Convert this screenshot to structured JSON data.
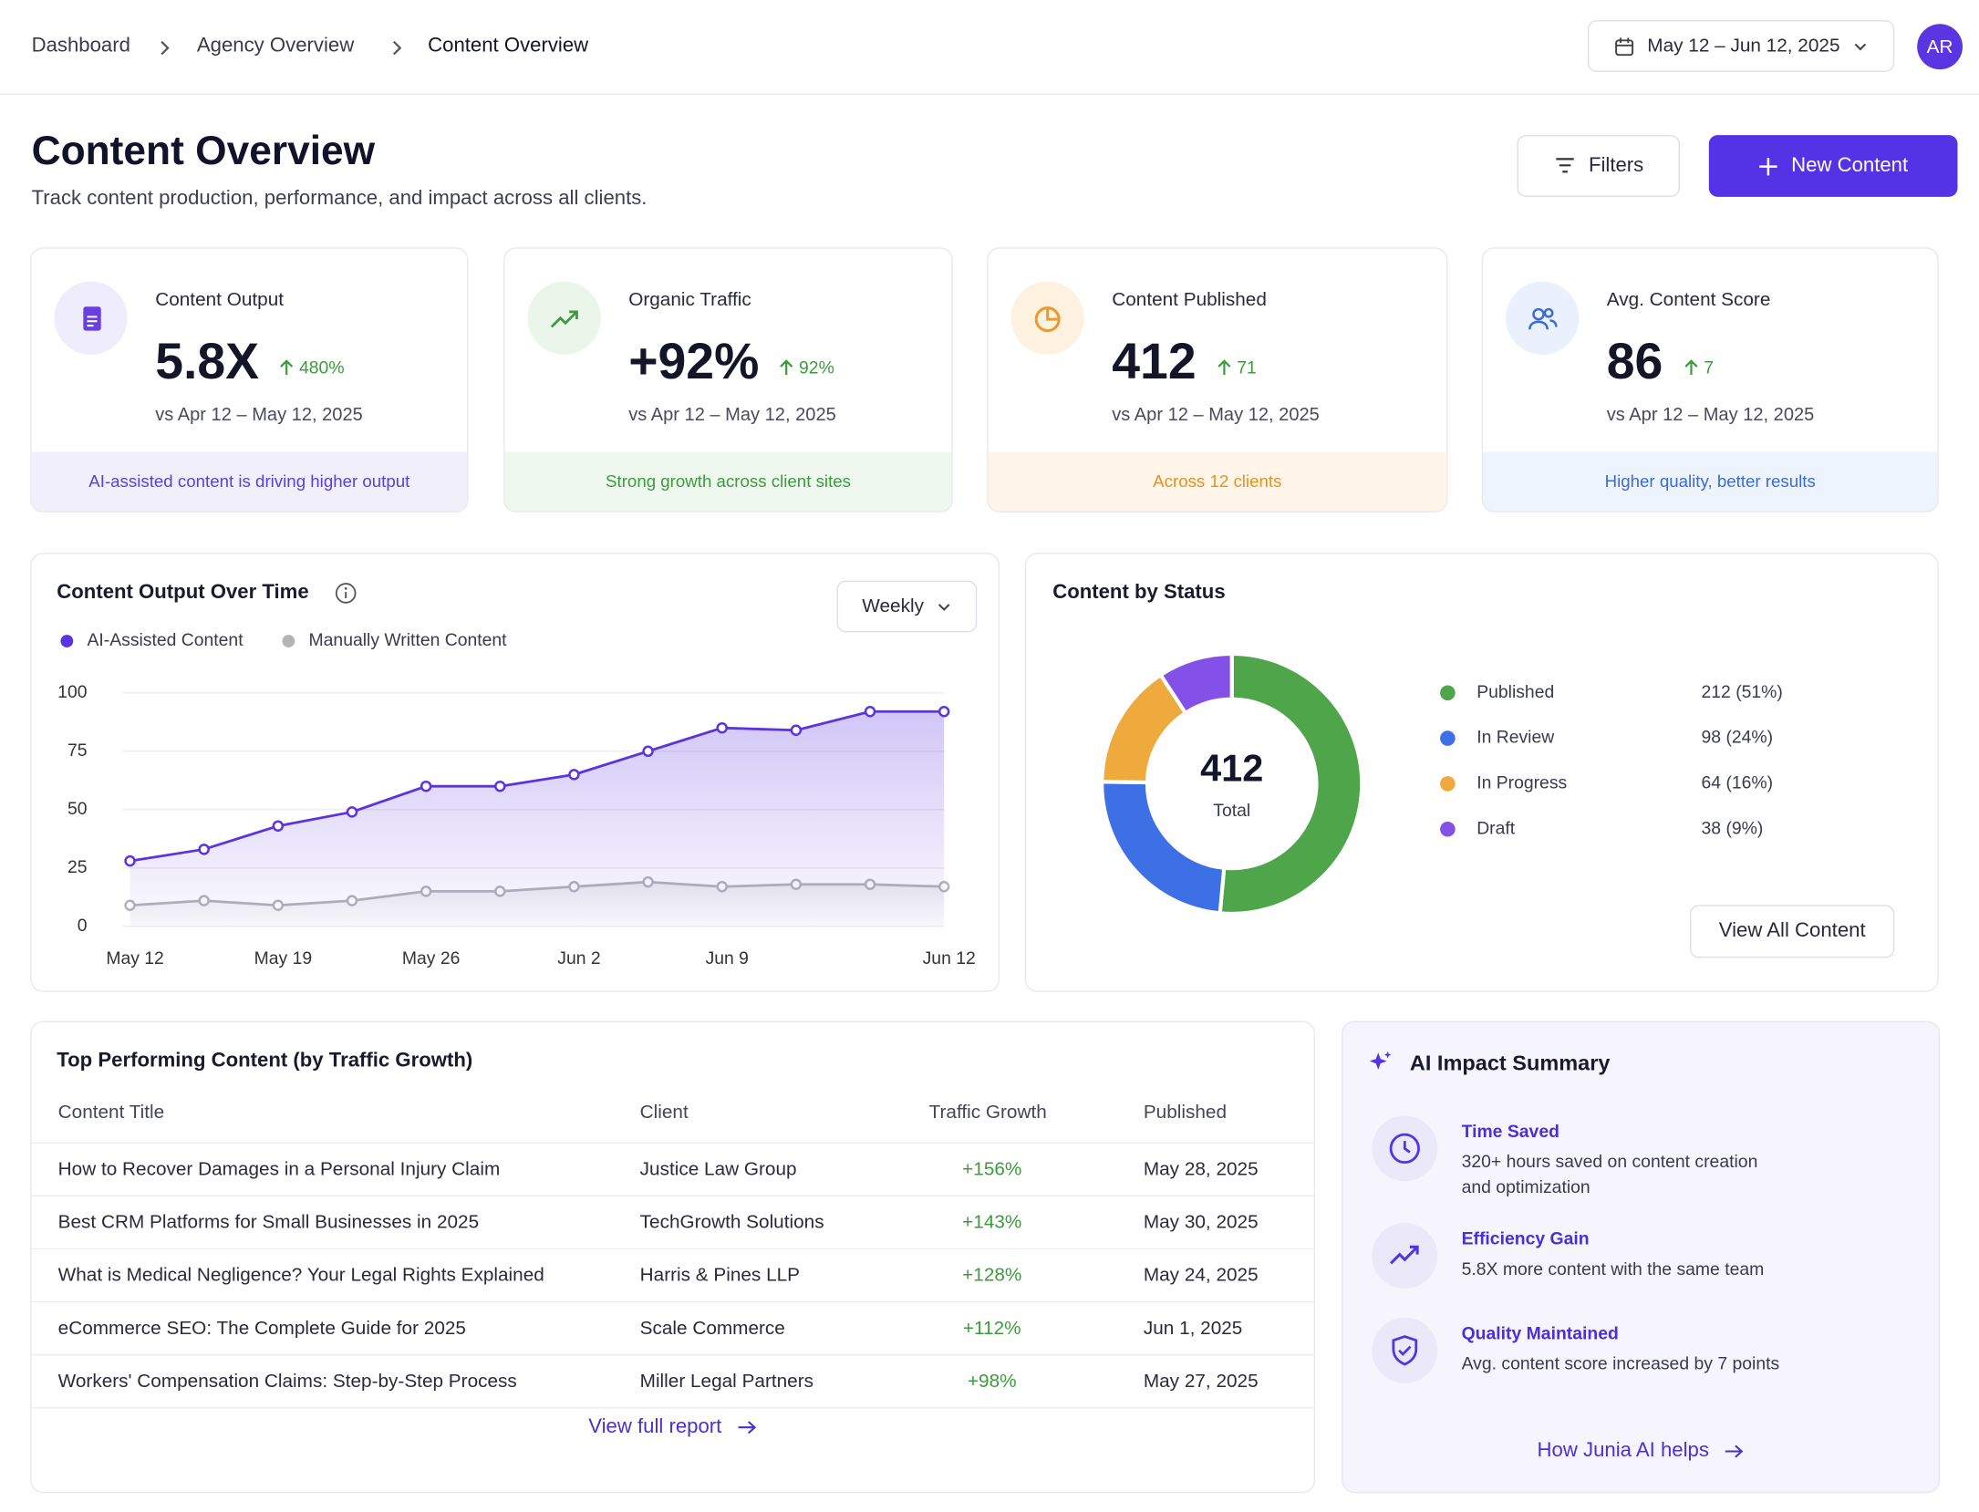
{
  "breadcrumb": [
    "Dashboard",
    "Agency Overview",
    "Content Overview"
  ],
  "date_range": "May 12 – Jun 12, 2025",
  "avatar": "AR",
  "page": {
    "title": "Content Overview",
    "subtitle": "Track content production, performance, and impact across all clients.",
    "filters": "Filters",
    "new_button": "New Content"
  },
  "kpis": [
    {
      "label": "Content Output",
      "value": "5.8X",
      "change": "480%",
      "compare": "vs Apr 12 – May 12, 2025",
      "note": "AI-assisted content is driving higher output"
    },
    {
      "label": "Organic Traffic",
      "value": "+92%",
      "change": "92%",
      "compare": "vs Apr 12 – May 12, 2025",
      "note": "Strong growth across client sites"
    },
    {
      "label": "Content Published",
      "value": "412",
      "change": "71",
      "compare": "vs Apr 12 – May 12, 2025",
      "note": "Across 12 clients"
    },
    {
      "label": "Avg. Content Score",
      "value": "86",
      "change": "7",
      "compare": "vs Apr 12 – May 12, 2025",
      "note": "Higher quality, better results"
    }
  ],
  "chart_data": [
    {
      "type": "line",
      "title": "Content Output Over Time",
      "control": "Weekly",
      "categories": [
        "May 12",
        null,
        "May 19",
        null,
        "May 26",
        null,
        "Jun 2",
        null,
        "Jun 9",
        null,
        null,
        "Jun 12"
      ],
      "series": [
        {
          "name": "AI-Assisted Content",
          "color": "#5b33e0",
          "values": [
            28,
            33,
            43,
            49,
            60,
            60,
            65,
            75,
            85,
            84,
            92,
            92
          ]
        },
        {
          "name": "Manually Written Content",
          "color": "#b3b3b8",
          "values": [
            9,
            11,
            9,
            11,
            15,
            15,
            17,
            19,
            17,
            18,
            18,
            17
          ]
        }
      ],
      "ylim": [
        0,
        100
      ],
      "yticks": [
        0,
        25,
        50,
        75,
        100
      ],
      "grid": true
    },
    {
      "type": "pie",
      "title": "Content by Status",
      "categories": [
        "Published",
        "In Review",
        "In Progress",
        "Draft"
      ],
      "values": [
        212,
        98,
        64,
        38
      ],
      "value_labels": [
        "212 (51%)",
        "98 (24%)",
        "64 (16%)",
        "38 (9%)"
      ],
      "colors": [
        "#4fa64a",
        "#3c70e4",
        "#eeaa3c",
        "#8451e8"
      ],
      "total": "412",
      "total_label": "Total",
      "button": "View All Content"
    }
  ],
  "table": {
    "title": "Top Performing Content (by Traffic Growth)",
    "columns": [
      "Content Title",
      "Client",
      "Traffic Growth",
      "Published"
    ],
    "rows": [
      [
        "How to Recover Damages in a Personal Injury Claim",
        "Justice Law Group",
        "+156%",
        "May 28, 2025"
      ],
      [
        "Best CRM Platforms for Small Businesses in 2025",
        "TechGrowth Solutions",
        "+143%",
        "May 30, 2025"
      ],
      [
        "What is Medical Negligence? Your Legal Rights Explained",
        "Harris & Pines LLP",
        "+128%",
        "May 24, 2025"
      ],
      [
        "eCommerce SEO: The Complete Guide for 2025",
        "Scale Commerce",
        "+112%",
        "Jun 1, 2025"
      ],
      [
        "Workers' Compensation Claims: Step-by-Step Process",
        "Miller Legal Partners",
        "+98%",
        "May 27, 2025"
      ]
    ],
    "link": "View full report"
  },
  "ai_summary": {
    "title": "AI Impact Summary",
    "items": [
      {
        "title": "Time Saved",
        "text": "320+ hours saved on content creation and optimization"
      },
      {
        "title": "Efficiency Gain",
        "text": "5.8X more content with the same team"
      },
      {
        "title": "Quality Maintained",
        "text": "Avg. content score increased by 7 points"
      }
    ],
    "link": "How Junia AI helps"
  }
}
